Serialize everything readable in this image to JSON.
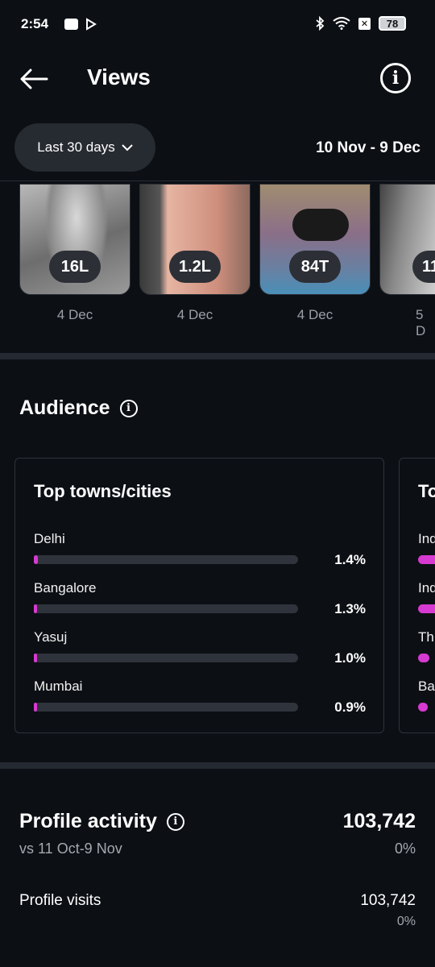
{
  "status_bar": {
    "time": "2:54",
    "battery": "78"
  },
  "header": {
    "title": "Views"
  },
  "range": {
    "selector_label": "Last 30 days",
    "date_range": "10 Nov - 9 Dec"
  },
  "thumbnails": [
    {
      "views": "16L",
      "date": "4 Dec"
    },
    {
      "views": "1.2L",
      "date": "4 Dec"
    },
    {
      "views": "84T",
      "date": "4 Dec"
    },
    {
      "views": "11",
      "date": "5 D"
    }
  ],
  "audience": {
    "title": "Audience",
    "top_cities": {
      "title": "Top towns/cities",
      "rows": [
        {
          "name": "Delhi",
          "percent": "1.4%",
          "fraction": 0.014
        },
        {
          "name": "Bangalore",
          "percent": "1.3%",
          "fraction": 0.013
        },
        {
          "name": "Yasuj",
          "percent": "1.0%",
          "fraction": 0.01
        },
        {
          "name": "Mumbai",
          "percent": "0.9%",
          "fraction": 0.009
        }
      ]
    },
    "second_card": {
      "title_partial": "To",
      "rows": [
        "Ind",
        "Ind",
        "Th",
        "Ba"
      ]
    }
  },
  "profile_activity": {
    "title": "Profile activity",
    "comparison": "vs 11 Oct-9 Nov",
    "value": "103,742",
    "change": "0%",
    "visits_label": "Profile visits",
    "visits_value": "103,742",
    "visits_change": "0%"
  },
  "colors": {
    "background": "#0c0f14",
    "accent_bar": "#d63ad0",
    "pill": "#262a31"
  }
}
